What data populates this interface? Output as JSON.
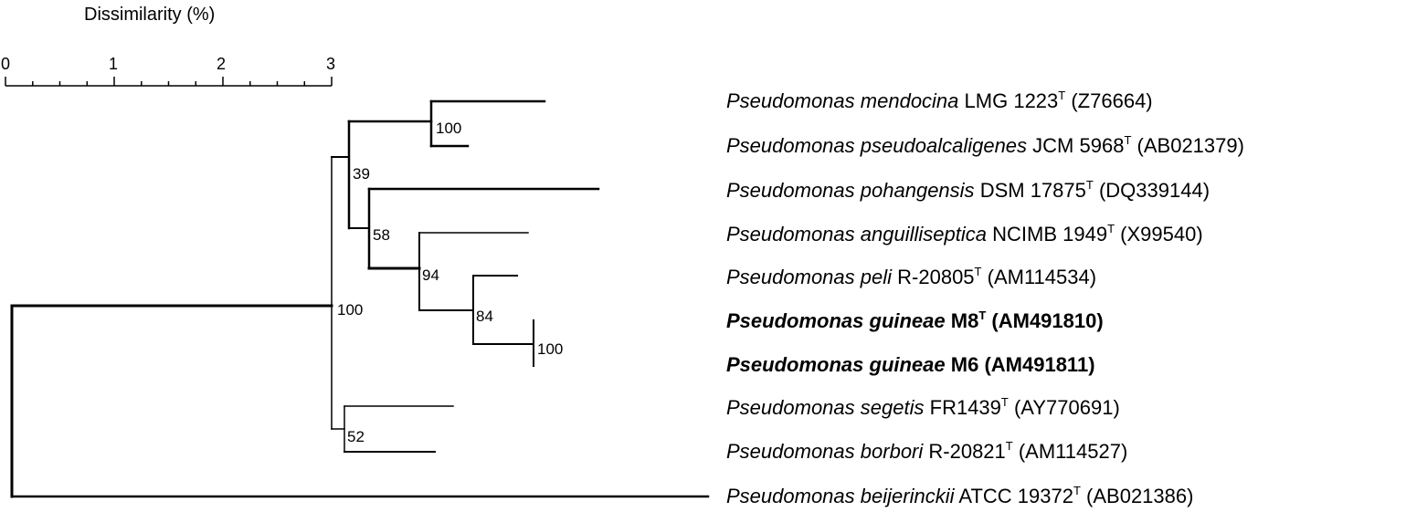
{
  "scale": {
    "title": "Dissimilarity (%)",
    "ticks": [
      0,
      1,
      2,
      3
    ],
    "minor_step": 0.25
  },
  "tree": {
    "root": 100,
    "nodes": {
      "n1": 39,
      "n2": 100,
      "n3": 58,
      "n4": 94,
      "n5": 84,
      "n6": 100,
      "n7": 52
    }
  },
  "taxa": [
    {
      "genus": "Pseudomonas",
      "species": "mendocina",
      "strain": "LMG 1223",
      "type": "T",
      "accession": "(Z76664)",
      "bold": false
    },
    {
      "genus": "Pseudomonas",
      "species": "pseudoalcaligenes",
      "strain": "JCM 5968",
      "type": "T",
      "accession": "(AB021379)",
      "bold": false
    },
    {
      "genus": "Pseudomonas",
      "species": "pohangensis",
      "strain": "DSM 17875",
      "type": "T",
      "accession": "(DQ339144)",
      "bold": false
    },
    {
      "genus": "Pseudomonas",
      "species": "anguilliseptica",
      "strain": "NCIMB 1949",
      "type": "T",
      "accession": "(X99540)",
      "bold": false
    },
    {
      "genus": "Pseudomonas",
      "species": "peli",
      "strain": "R-20805",
      "type": "T",
      "accession": "(AM114534)",
      "bold": false
    },
    {
      "genus": "Pseudomonas",
      "species": "guineae",
      "strain": "M8",
      "type": "T",
      "accession": "(AM491810)",
      "bold": true
    },
    {
      "genus": "Pseudomonas",
      "species": "guineae",
      "strain": "M6",
      "type": "",
      "accession": "(AM491811)",
      "bold": true
    },
    {
      "genus": "Pseudomonas",
      "species": "segetis",
      "strain": "FR1439",
      "type": "T",
      "accession": "(AY770691)",
      "bold": false
    },
    {
      "genus": "Pseudomonas",
      "species": "borbori",
      "strain": "R-20821",
      "type": "T",
      "accession": "(AM114527)",
      "bold": false
    },
    {
      "genus": "Pseudomonas",
      "species": "beijerinckii",
      "strain": "ATCC 19372",
      "type": "T",
      "accession": "(AB021386)",
      "bold": false
    }
  ]
}
